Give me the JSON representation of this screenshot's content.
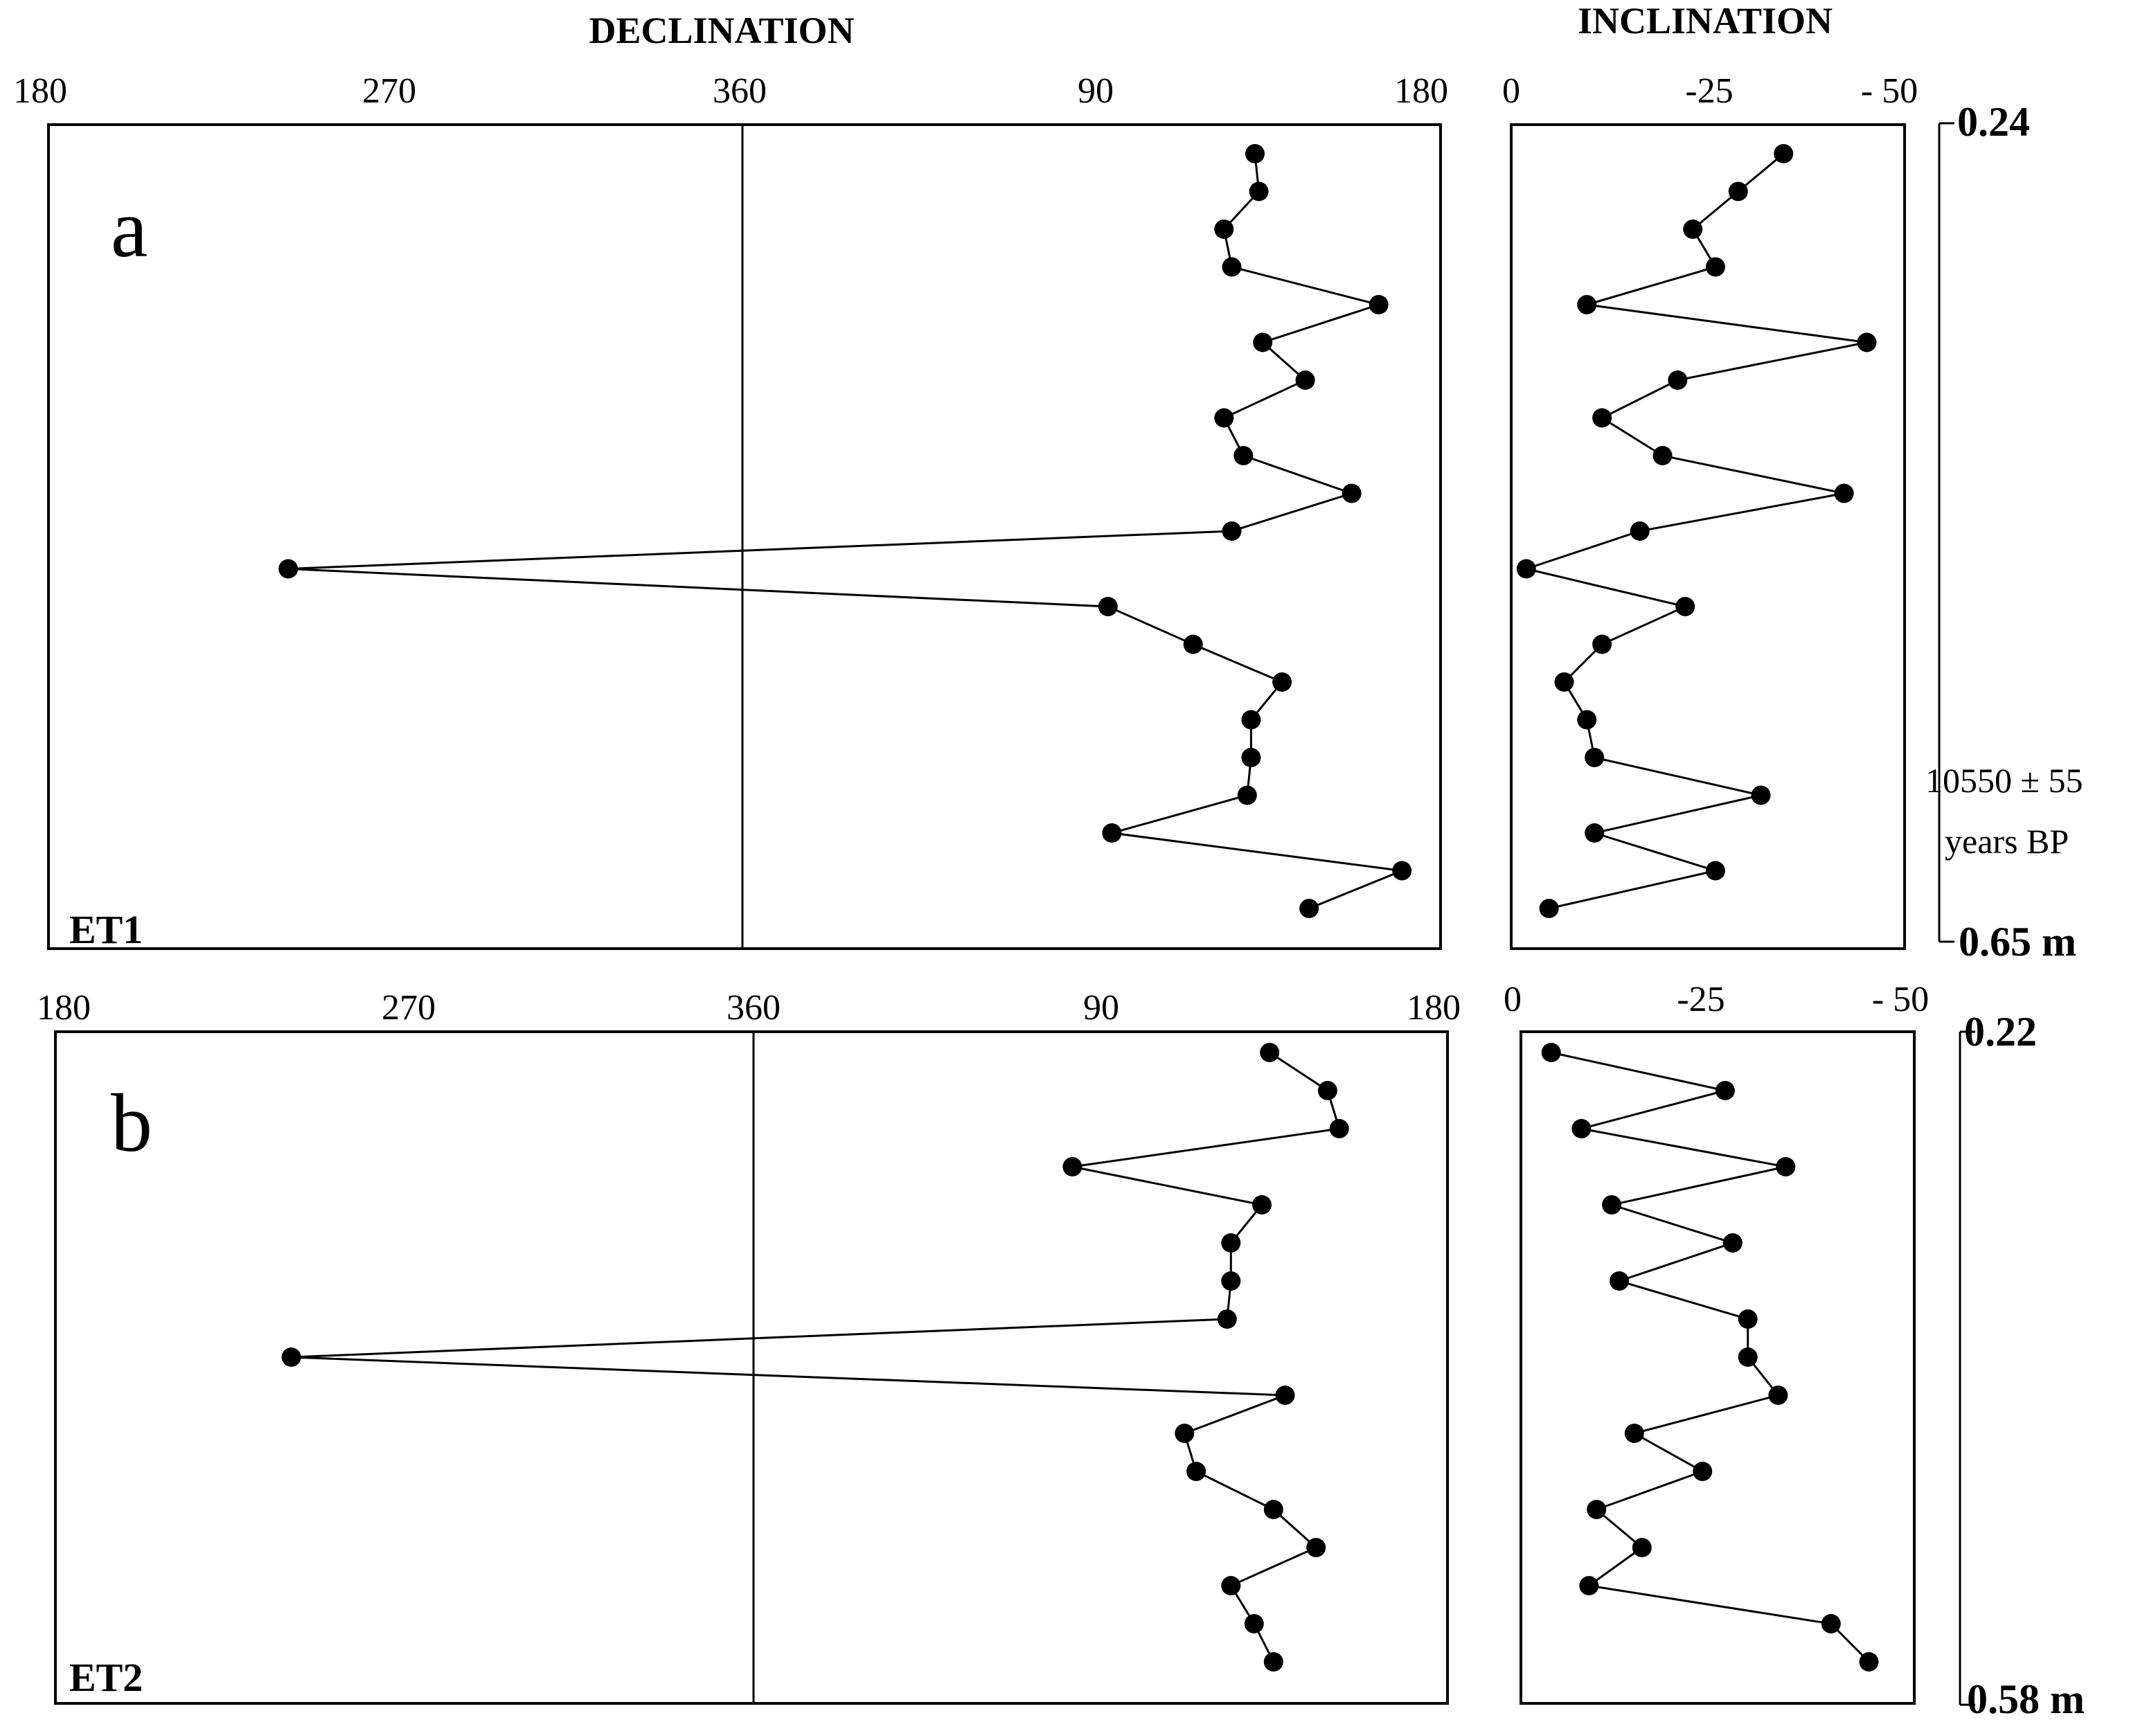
{
  "headers": {
    "declination": "DECLINATION",
    "inclination": "INCLINATION"
  },
  "chart_data": [
    {
      "type": "line",
      "panel": "a",
      "core": "ET1",
      "declination_ticks": [
        "180",
        "270",
        "360",
        "90",
        "180"
      ],
      "inclination_ticks": [
        "0",
        "-25",
        "- 50"
      ],
      "depth_top": "0.24",
      "depth_bottom": "0.65 m",
      "annotation": [
        "10550 ± 55",
        "years BP"
      ],
      "declination": [
        132,
        133,
        124,
        126,
        164,
        134,
        145,
        124,
        129,
        157,
        126,
        242,
        94,
        116,
        139,
        131,
        131,
        130,
        95,
        170,
        146
      ],
      "inclination": [
        -36,
        -30,
        -24,
        -27,
        -10,
        -47,
        -22,
        -12,
        -20,
        -44,
        -17,
        -2,
        -23,
        -12,
        -7,
        -10,
        -11,
        -33,
        -11,
        -27,
        -5
      ]
    },
    {
      "type": "line",
      "panel": "b",
      "core": "ET2",
      "declination_ticks": [
        "180",
        "270",
        "360",
        "90",
        "180"
      ],
      "inclination_ticks": [
        "0",
        "-25",
        "- 50"
      ],
      "depth_top": "0.22",
      "depth_bottom": "0.58 m",
      "declination": [
        134,
        149,
        152,
        83,
        132,
        124,
        124,
        123,
        241,
        138,
        112,
        115,
        135,
        146,
        124,
        130,
        135
      ],
      "inclination": [
        -4,
        -27,
        -8,
        -35,
        -12,
        -28,
        -13,
        -30,
        -30,
        -34,
        -15,
        -24,
        -10,
        -16,
        -9,
        -41,
        -46
      ]
    }
  ]
}
